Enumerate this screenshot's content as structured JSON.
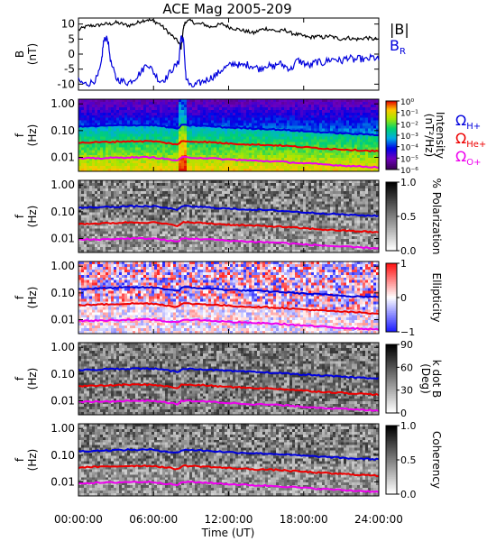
{
  "chart_data": {
    "type": "spectrogram-stack",
    "title": "ACE Mag 2005-209",
    "xlabel": "Time (UT)",
    "x_ticks": [
      "00:00:00",
      "06:00:00",
      "12:00:00",
      "18:00:00",
      "24:00:00"
    ],
    "x_range_hours": [
      0,
      24
    ],
    "x_tick_hours": [
      0,
      6,
      12,
      18,
      24
    ],
    "top_panel": {
      "type": "line",
      "ylabel": "B",
      "yunit": "(nT)",
      "ylim": [
        -12,
        12
      ],
      "y_ticks": [
        "10",
        "5",
        "0",
        "-5",
        "-10"
      ],
      "y_tick_values": [
        10,
        5,
        0,
        -5,
        -10
      ],
      "series": [
        {
          "name": "|B|",
          "color": "#000000",
          "points": [
            [
              0,
              8
            ],
            [
              0.5,
              9
            ],
            [
              1,
              9.5
            ],
            [
              1.5,
              9.5
            ],
            [
              2,
              10
            ],
            [
              2.5,
              10
            ],
            [
              3,
              10.5
            ],
            [
              3.5,
              10
            ],
            [
              4,
              9.5
            ],
            [
              4.5,
              10
            ],
            [
              5,
              11
            ],
            [
              5.5,
              11.5
            ],
            [
              6,
              11
            ],
            [
              6.5,
              10
            ],
            [
              7,
              8
            ],
            [
              7.5,
              6
            ],
            [
              8,
              4
            ],
            [
              8.2,
              2
            ],
            [
              8.4,
              9
            ],
            [
              8.6,
              11
            ],
            [
              9,
              11
            ],
            [
              9.5,
              10
            ],
            [
              10,
              10
            ],
            [
              10.5,
              9
            ],
            [
              11,
              9.5
            ],
            [
              11.5,
              10
            ],
            [
              12,
              9
            ],
            [
              12.5,
              8.5
            ],
            [
              13,
              8
            ],
            [
              13.5,
              7.5
            ],
            [
              14,
              7
            ],
            [
              14.5,
              8
            ],
            [
              15,
              8.5
            ],
            [
              15.5,
              8
            ],
            [
              16,
              7.5
            ],
            [
              16.5,
              8
            ],
            [
              17,
              7
            ],
            [
              17.5,
              6.5
            ],
            [
              18,
              6
            ],
            [
              18.5,
              5.5
            ],
            [
              19,
              6
            ],
            [
              19.5,
              5.5
            ],
            [
              20,
              6
            ],
            [
              20.5,
              5.5
            ],
            [
              21,
              5
            ],
            [
              21.5,
              5.5
            ],
            [
              22,
              5
            ],
            [
              22.5,
              5
            ],
            [
              23,
              5.5
            ],
            [
              23.5,
              5
            ],
            [
              24,
              5
            ]
          ]
        },
        {
          "name": "BR",
          "color": "#0000dd",
          "points": [
            [
              0,
              -9
            ],
            [
              0.5,
              -10
            ],
            [
              1,
              -9.5
            ],
            [
              1.5,
              -8
            ],
            [
              1.8,
              -4
            ],
            [
              2,
              4
            ],
            [
              2.3,
              6
            ],
            [
              2.6,
              -3
            ],
            [
              3,
              -8
            ],
            [
              3.5,
              -9
            ],
            [
              4,
              -9.5
            ],
            [
              4.5,
              -8
            ],
            [
              5,
              -6
            ],
            [
              5.5,
              -3
            ],
            [
              6,
              -6
            ],
            [
              6.5,
              -9
            ],
            [
              7,
              -8
            ],
            [
              7.5,
              -5
            ],
            [
              8,
              -3
            ],
            [
              8.2,
              6
            ],
            [
              8.4,
              4
            ],
            [
              8.6,
              -8
            ],
            [
              9,
              -11
            ],
            [
              9.5,
              -10
            ],
            [
              10,
              -9
            ],
            [
              10.5,
              -8
            ],
            [
              11,
              -7
            ],
            [
              11.5,
              -5
            ],
            [
              12,
              -4
            ],
            [
              12.5,
              -3
            ],
            [
              13,
              -4
            ],
            [
              13.5,
              -3.5
            ],
            [
              14,
              -4
            ],
            [
              14.5,
              -5
            ],
            [
              15,
              -3.5
            ],
            [
              15.5,
              -4.5
            ],
            [
              16,
              -3
            ],
            [
              16.5,
              -4
            ],
            [
              17,
              -5
            ],
            [
              17.5,
              -2
            ],
            [
              18,
              -3
            ],
            [
              18.5,
              -4
            ],
            [
              19,
              -2.5
            ],
            [
              19.5,
              -3
            ],
            [
              20,
              -2
            ],
            [
              20.5,
              -1.5
            ],
            [
              21,
              -2.5
            ],
            [
              21.5,
              -1
            ],
            [
              22,
              -2
            ],
            [
              22.5,
              -1.5
            ],
            [
              23,
              -2
            ],
            [
              23.5,
              -1
            ],
            [
              24,
              -2
            ]
          ]
        }
      ],
      "legend": [
        {
          "label": "|B|",
          "color": "#000000"
        },
        {
          "label": "B",
          "sub": "R",
          "color": "#0000dd"
        }
      ]
    },
    "spectrogram_panels": [
      {
        "name": "intensity",
        "ylabel": "f",
        "yunit": "(Hz)",
        "y_ticks": [
          "1.00",
          "0.10",
          "0.01"
        ],
        "colorbar_label": "Intensity",
        "colorbar_unit": "(nT²/Hz)",
        "colorbar_ticks": [
          "10⁰",
          "10⁻¹",
          "10⁻²",
          "10⁻³",
          "10⁻⁴",
          "10⁻⁵",
          "10⁻⁶"
        ],
        "colorbar_tick_exponents": [
          0,
          -1,
          -2,
          -3,
          -4,
          -5,
          -6
        ],
        "colormap": "rainbow",
        "legend": [
          {
            "label": "Ω",
            "sub": "H+",
            "color": "#0000dd"
          },
          {
            "label": "Ω",
            "sub": "He+",
            "color": "#ee0000"
          },
          {
            "label": "Ω",
            "sub": "O+",
            "color": "#ee00ee"
          }
        ]
      },
      {
        "name": "polarization",
        "ylabel": "f",
        "yunit": "(Hz)",
        "y_ticks": [
          "1.00",
          "0.10",
          "0.01"
        ],
        "colorbar_label": "% Polarization",
        "colorbar_ticks": [
          "1.0",
          "0.5",
          "0.0"
        ],
        "colorbar_tick_values": [
          1,
          0.5,
          0
        ],
        "colormap": "gray"
      },
      {
        "name": "ellipticity",
        "ylabel": "f",
        "yunit": "(Hz)",
        "y_ticks": [
          "1.00",
          "0.10",
          "0.01"
        ],
        "colorbar_label": "Ellipticity",
        "colorbar_ticks": [
          "1",
          "0",
          "−1"
        ],
        "colorbar_tick_values": [
          1,
          0,
          -1
        ],
        "colormap": "bwr"
      },
      {
        "name": "kdotb",
        "ylabel": "f",
        "yunit": "(Hz)",
        "y_ticks": [
          "1.00",
          "0.10",
          "0.01"
        ],
        "colorbar_label": "k dot B",
        "colorbar_unit": "(Deg)",
        "colorbar_ticks": [
          "90",
          "60",
          "30",
          "0"
        ],
        "colorbar_tick_values": [
          90,
          60,
          30,
          0
        ],
        "colormap": "gray"
      },
      {
        "name": "coherency",
        "ylabel": "f",
        "yunit": "(Hz)",
        "y_ticks": [
          "1.00",
          "0.10",
          "0.01"
        ],
        "colorbar_label": "Coherency",
        "colorbar_ticks": [
          "1.0",
          "0.5",
          "0.0"
        ],
        "colorbar_tick_values": [
          1,
          0.5,
          0
        ],
        "colormap": "gray"
      }
    ],
    "gyrofrequency_lines": {
      "hours": [
        0,
        2,
        4,
        6,
        8,
        8.25,
        8.5,
        10,
        12,
        14,
        16,
        18,
        20,
        22,
        24
      ],
      "H+": [
        0.14,
        0.15,
        0.16,
        0.16,
        0.12,
        0.16,
        0.16,
        0.15,
        0.13,
        0.12,
        0.11,
        0.095,
        0.085,
        0.075,
        0.07
      ],
      "He+": [
        0.035,
        0.037,
        0.04,
        0.04,
        0.03,
        0.04,
        0.04,
        0.038,
        0.033,
        0.03,
        0.028,
        0.024,
        0.021,
        0.019,
        0.017
      ],
      "O+": [
        0.009,
        0.0093,
        0.01,
        0.01,
        0.0075,
        0.01,
        0.01,
        0.0095,
        0.0083,
        0.0075,
        0.007,
        0.006,
        0.0053,
        0.0047,
        0.0043
      ]
    }
  }
}
